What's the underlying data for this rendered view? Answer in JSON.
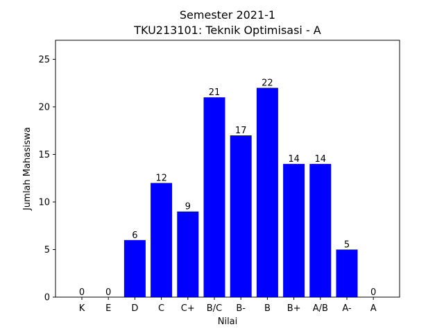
{
  "chart_data": {
    "type": "bar",
    "title_line1": "Semester 2021-1",
    "title_line2": "TKU213101: Teknik Optimisasi - A",
    "xlabel": "Nilai",
    "ylabel": "Jumlah Mahasiswa",
    "categories": [
      "K",
      "E",
      "D",
      "C",
      "C+",
      "B/C",
      "B-",
      "B",
      "B+",
      "A/B",
      "A-",
      "A"
    ],
    "values": [
      0,
      0,
      6,
      12,
      9,
      21,
      17,
      22,
      14,
      14,
      5,
      0
    ],
    "ylim": [
      0,
      27
    ],
    "yticks": [
      0,
      5,
      10,
      15,
      20,
      25
    ],
    "bar_color": "#0000ff",
    "grid": false,
    "show_value_labels": true
  }
}
